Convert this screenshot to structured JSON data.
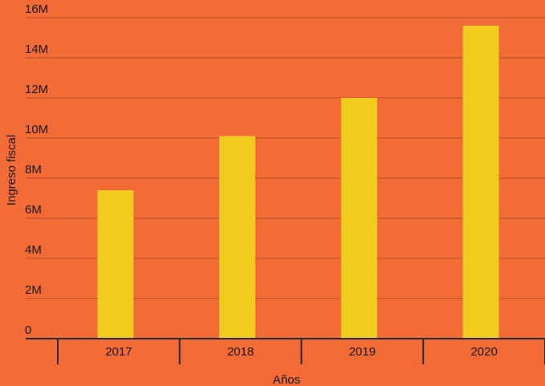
{
  "chart_data": {
    "type": "bar",
    "categories": [
      "2017",
      "2018",
      "2019",
      "2020"
    ],
    "series": [
      {
        "values": [
          7400000,
          10100000,
          12000000,
          15600000
        ]
      }
    ],
    "y_ticks": [
      "0",
      "2M",
      "4M",
      "6M",
      "8M",
      "10M",
      "12M",
      "14M",
      "16M"
    ],
    "xlabel": "Años",
    "ylabel": "Ingreso fiscal",
    "ylim": [
      0,
      16000000
    ],
    "grid": true,
    "colors": {
      "background": "#f26a36",
      "bar": "#f2cb1f",
      "grid": "#c9542a",
      "axis": "#2a2a2a",
      "text": "#1a1a1a"
    }
  }
}
